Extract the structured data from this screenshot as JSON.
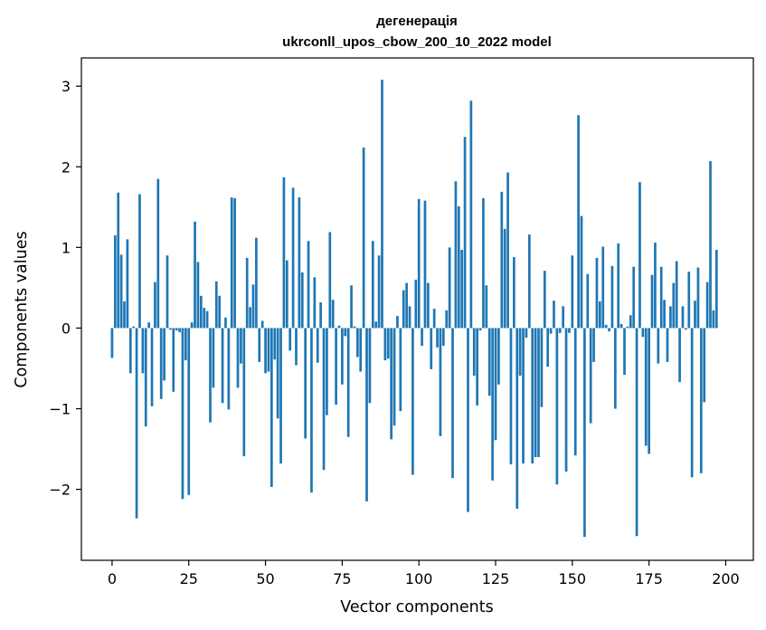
{
  "chart_data": {
    "type": "bar",
    "title_line1": "дегенерація",
    "title_line2": "ukrconll_upos_cbow_200_10_2022 model",
    "xlabel": "Vector components",
    "ylabel": "Components values",
    "xlim": [
      -10,
      209
    ],
    "ylim": [
      -2.88,
      3.35
    ],
    "xticks": [
      0,
      25,
      50,
      75,
      100,
      125,
      150,
      175,
      200
    ],
    "xtick_labels": [
      "0",
      "25",
      "50",
      "75",
      "100",
      "125",
      "150",
      "175",
      "200"
    ],
    "yticks": [
      -2,
      -1,
      0,
      1,
      2,
      3
    ],
    "ytick_labels": [
      "−2",
      "−1",
      "0",
      "1",
      "2",
      "3"
    ],
    "grid": false,
    "bar_color": "#1f77b4",
    "values": [
      -0.37,
      1.15,
      1.68,
      0.91,
      0.33,
      1.1,
      -0.56,
      0.02,
      -2.36,
      1.66,
      -0.56,
      -1.22,
      0.07,
      -0.97,
      0.57,
      1.85,
      -0.88,
      -0.65,
      0.9,
      -0.02,
      -0.79,
      -0.03,
      -0.05,
      -2.12,
      -0.4,
      -2.07,
      0.07,
      1.32,
      0.82,
      0.4,
      0.25,
      0.21,
      -1.17,
      -0.74,
      0.58,
      0.4,
      -0.93,
      0.13,
      -1.01,
      1.62,
      1.61,
      -0.74,
      -0.44,
      -1.59,
      0.87,
      0.26,
      0.54,
      1.12,
      -0.42,
      0.09,
      -0.56,
      -0.54,
      -1.97,
      -0.39,
      -1.12,
      -1.68,
      1.87,
      0.84,
      -0.28,
      1.74,
      -0.46,
      1.62,
      0.69,
      -1.37,
      1.08,
      -2.04,
      0.63,
      -0.43,
      0.32,
      -1.76,
      -1.08,
      1.19,
      0.35,
      -0.95,
      0.03,
      -0.7,
      -0.1,
      -1.35,
      0.53,
      0.02,
      -0.36,
      -0.54,
      2.24,
      -2.15,
      -0.93,
      1.08,
      0.08,
      0.9,
      3.08,
      -0.4,
      -0.38,
      -1.38,
      -1.21,
      0.15,
      -1.03,
      0.47,
      0.56,
      0.27,
      -1.82,
      0.6,
      1.6,
      -0.22,
      1.58,
      0.56,
      -0.51,
      0.24,
      -0.24,
      -1.34,
      -0.22,
      0.22,
      1.0,
      -1.86,
      1.82,
      1.51,
      0.97,
      2.37,
      -2.28,
      2.82,
      -0.59,
      -0.96,
      -0.03,
      1.61,
      0.53,
      -0.84,
      -1.89,
      -1.39,
      -0.7,
      1.69,
      1.23,
      1.93,
      -1.69,
      0.88,
      -2.24,
      -0.59,
      -1.68,
      -0.12,
      1.16,
      -1.68,
      -1.6,
      -1.6,
      -0.98,
      0.71,
      -0.48,
      -0.07,
      0.34,
      -1.94,
      -0.06,
      0.27,
      -1.78,
      -0.06,
      0.9,
      -1.58,
      2.64,
      1.39,
      -2.59,
      0.67,
      -1.18,
      -0.42,
      0.87,
      0.33,
      1.01,
      0.04,
      -0.04,
      0.77,
      -1.0,
      1.05,
      0.05,
      -0.58,
      0.02,
      0.16,
      0.76,
      -2.58,
      1.81,
      -0.11,
      -1.46,
      -1.56,
      0.66,
      1.06,
      -0.44,
      0.76,
      0.35,
      -0.42,
      0.27,
      0.56,
      0.83,
      -0.67,
      0.27,
      -0.02,
      0.7,
      -1.85,
      0.34,
      0.75,
      -1.8,
      -0.92,
      0.57,
      2.07,
      0.22,
      0.97
    ]
  }
}
